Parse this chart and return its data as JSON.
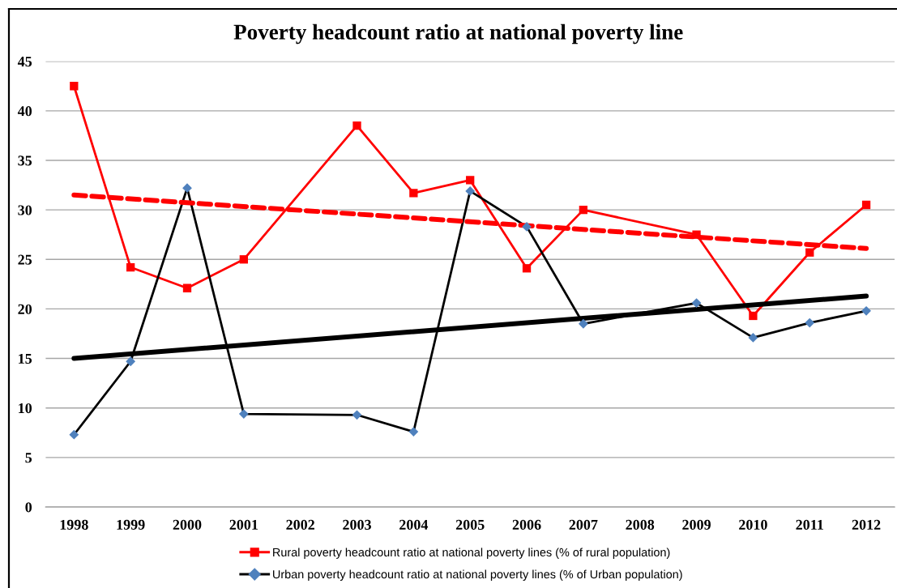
{
  "chart_data": {
    "type": "line",
    "title": "Poverty headcount ratio at national poverty line",
    "xlim": [
      1997.5,
      2012.5
    ],
    "xticks": [
      1998,
      1999,
      2000,
      2001,
      2002,
      2003,
      2004,
      2005,
      2006,
      2007,
      2008,
      2009,
      2010,
      2011,
      2012
    ],
    "ylim": [
      0,
      45
    ],
    "yticks": [
      0,
      5,
      10,
      15,
      20,
      25,
      30,
      35,
      40,
      45
    ],
    "grid": "y",
    "legend": "bottom",
    "series": [
      {
        "name": "Rural poverty headcount ratio at national poverty lines (% of rural population)",
        "color": "#ff0000",
        "marker": "square",
        "line_style": "solid",
        "x": [
          1998,
          1999,
          2000,
          2001,
          2003,
          2004,
          2005,
          2006,
          2007,
          2009,
          2010,
          2011,
          2012
        ],
        "values": [
          42.5,
          24.2,
          22.1,
          25.0,
          38.5,
          31.7,
          33.0,
          24.1,
          30.0,
          27.5,
          19.3,
          25.7,
          30.5
        ]
      },
      {
        "name": "Urban poverty headcount ratio at national poverty lines (% of Urban population)",
        "color": "#000000",
        "colors": [
          "#4f81bd",
          "#4f81bd",
          "#4f81bd",
          "#4f81bd",
          "#4f81bd",
          "#4f81bd",
          "#4f81bd",
          "#4f81bd",
          "#4f81bd",
          "#4f81bd",
          "#4f81bd",
          "#4f81bd",
          "#4f81bd"
        ],
        "marker": "diamond",
        "line_style": "solid",
        "x": [
          1998,
          1999,
          2000,
          2001,
          2003,
          2004,
          2005,
          2006,
          2007,
          2009,
          2010,
          2011,
          2012
        ],
        "values": [
          7.3,
          14.7,
          32.2,
          9.4,
          9.3,
          7.6,
          31.9,
          28.3,
          18.5,
          20.6,
          17.1,
          18.6,
          19.8
        ]
      },
      {
        "type": "line",
        "color": "#ff0000",
        "marker": "none",
        "line_style": "dashed",
        "x": [
          1998,
          2012
        ],
        "values": [
          31.5,
          26.1
        ]
      },
      {
        "type": "line",
        "color": "#000000",
        "marker": "none",
        "line_style": "solid",
        "x": [
          1998,
          2012
        ],
        "values": [
          15.0,
          21.3
        ]
      }
    ]
  }
}
